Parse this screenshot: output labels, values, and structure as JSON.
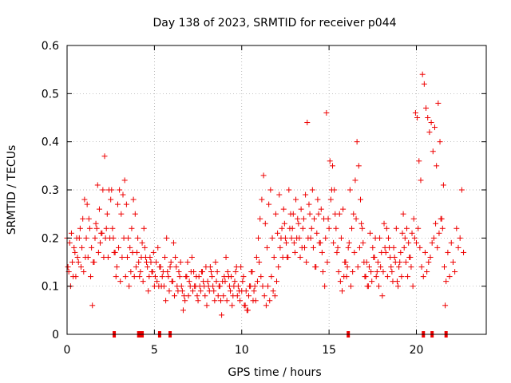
{
  "chart_data": {
    "type": "scatter",
    "title": "Day 138 of 2023, SRMTID for receiver p044",
    "xlabel": "GPS time / hours",
    "ylabel": "SRMTID / TECUs",
    "xlim": [
      0,
      24
    ],
    "ylim": [
      0,
      0.6
    ],
    "x_ticks": [
      0,
      5,
      10,
      15,
      20
    ],
    "x_tick_labels": [
      "0",
      "5",
      "10",
      "15",
      "20"
    ],
    "y_ticks": [
      0,
      0.1,
      0.2,
      0.3,
      0.4,
      0.5,
      0.6
    ],
    "y_tick_labels": [
      "0",
      "0.1",
      "0.2",
      "0.3",
      "0.4",
      "0.5",
      "0.6"
    ],
    "grid": true,
    "marker": "plus",
    "color": "#ee0000",
    "series_name": "p044",
    "points_x": [
      0,
      0.1,
      0.2,
      0.3,
      0.4,
      0.5,
      0.6,
      0.7,
      0.8,
      0.9,
      1,
      1.1,
      1.2,
      1.3,
      1.4,
      1.5,
      1.6,
      1.7,
      1.8,
      1.9,
      2,
      2.1,
      2.2,
      2.3,
      2.4,
      2.5,
      2.6,
      2.7,
      2.8,
      2.9,
      3,
      3.1,
      3.2,
      3.3,
      3.4,
      3.5,
      3.6,
      3.7,
      3.8,
      3.9,
      4,
      4.1,
      4.2,
      4.3,
      4.4,
      4.5,
      4.6,
      4.7,
      4.8,
      4.9,
      5,
      5.1,
      5.2,
      5.3,
      5.4,
      5.5,
      5.6,
      5.7,
      5.8,
      5.9,
      6,
      6.1,
      6.2,
      6.3,
      6.4,
      6.5,
      6.6,
      6.7,
      6.8,
      6.9,
      7,
      7.1,
      7.2,
      7.3,
      7.4,
      7.5,
      7.6,
      7.7,
      7.8,
      7.9,
      8,
      8.1,
      8.2,
      8.3,
      8.4,
      8.5,
      8.6,
      8.7,
      8.8,
      8.9,
      9,
      9.1,
      9.2,
      9.3,
      9.4,
      9.5,
      9.6,
      9.7,
      9.8,
      9.9,
      10,
      10.1,
      10.2,
      10.3,
      10.4,
      10.5,
      10.6,
      10.7,
      10.8,
      10.9,
      11,
      11.1,
      11.2,
      11.3,
      11.4,
      11.5,
      11.6,
      11.7,
      11.8,
      11.9,
      12,
      12.1,
      12.2,
      12.3,
      12.4,
      12.5,
      12.6,
      12.7,
      12.8,
      12.9,
      13,
      13.1,
      13.2,
      13.3,
      13.4,
      13.5,
      13.6,
      13.7,
      13.8,
      13.9,
      14,
      14.1,
      14.2,
      14.3,
      14.4,
      14.5,
      14.6,
      14.7,
      14.8,
      14.9,
      15,
      15.1,
      15.2,
      15.3,
      15.4,
      15.5,
      15.6,
      15.7,
      15.8,
      15.9,
      16,
      16.1,
      16.2,
      16.3,
      16.4,
      16.5,
      16.6,
      16.7,
      16.8,
      16.9,
      17,
      17.1,
      17.2,
      17.3,
      17.4,
      17.5,
      17.6,
      17.7,
      17.8,
      17.9,
      18,
      18.1,
      18.2,
      18.3,
      18.4,
      18.5,
      18.6,
      18.7,
      18.8,
      18.9,
      19,
      19.1,
      19.2,
      19.3,
      19.4,
      19.5,
      19.6,
      19.7,
      19.8,
      19.9,
      20,
      20.1,
      20.2,
      20.3,
      20.4,
      20.5,
      20.6,
      20.7,
      20.8,
      20.9,
      21,
      21.1,
      21.2,
      21.3,
      21.4,
      21.5,
      21.6,
      21.7,
      21.8,
      21.9,
      22,
      22.1,
      22.2,
      22.3,
      22.4,
      22.5,
      22.6,
      22.7,
      0.05,
      0.15,
      0.25,
      0.35,
      0.45,
      0.55,
      0.65,
      0.75,
      0.85,
      0.95,
      1.05,
      1.15,
      1.25,
      1.35,
      1.45,
      1.55,
      1.65,
      1.75,
      1.85,
      1.95,
      2.05,
      2.15,
      2.25,
      2.35,
      2.45,
      2.55,
      2.65,
      2.75,
      2.85,
      2.95,
      3.05,
      3.15,
      3.25,
      3.35,
      3.45,
      3.55,
      3.65,
      3.75,
      3.85,
      3.95,
      4.05,
      4.15,
      4.25,
      4.35,
      4.45,
      4.55,
      4.65,
      4.75,
      4.85,
      4.95,
      5.05,
      5.15,
      5.25,
      5.35,
      5.45,
      5.55,
      5.65,
      5.75,
      5.85,
      5.95,
      6.05,
      6.15,
      6.25,
      6.35,
      6.45,
      6.55,
      6.65,
      6.75,
      6.85,
      6.95,
      7.05,
      7.15,
      7.25,
      7.35,
      7.45,
      7.55,
      7.65,
      7.75,
      7.85,
      7.95,
      8.05,
      8.15,
      8.25,
      8.35,
      8.45,
      8.55,
      8.65,
      8.75,
      8.85,
      8.95,
      9.05,
      9.15,
      9.25,
      9.35,
      9.45,
      9.55,
      9.65,
      9.75,
      9.85,
      9.95,
      10.05,
      10.15,
      10.25,
      10.35,
      10.45,
      10.55,
      10.65,
      10.75,
      10.85,
      10.95,
      11.05,
      11.15,
      11.25,
      11.35,
      11.45,
      11.55,
      11.65,
      11.75,
      11.85,
      11.95,
      12.05,
      12.15,
      12.25,
      12.35,
      12.45,
      12.55,
      12.65,
      12.75,
      12.85,
      12.95,
      13.05,
      13.15,
      13.25,
      13.35,
      13.45,
      13.55,
      13.65,
      13.75,
      13.85,
      13.95,
      14.05,
      14.15,
      14.25,
      14.35,
      14.45,
      14.55,
      14.65,
      14.75,
      14.85,
      14.95,
      15.05,
      15.15,
      15.25,
      15.35,
      15.45,
      15.55,
      15.65,
      15.75,
      15.85,
      15.95,
      16.05,
      16.15,
      16.25,
      16.35,
      16.45,
      16.55,
      16.65,
      16.75,
      16.85,
      16.95,
      17.05,
      17.15,
      17.25,
      17.35,
      17.45,
      17.55,
      17.65,
      17.75,
      17.85,
      17.95,
      18.05,
      18.15,
      18.25,
      18.35,
      18.45,
      18.55,
      18.65,
      18.75,
      18.85,
      18.95,
      19.05,
      19.15,
      19.25,
      19.35,
      19.45,
      19.55,
      19.65,
      19.75,
      19.85,
      19.95,
      20.05,
      20.15,
      20.25,
      20.35,
      20.45,
      20.55,
      20.65,
      20.75,
      20.85,
      20.95,
      21.05,
      21.15,
      21.25,
      21.35,
      21.45,
      21.55,
      21.65,
      21.75,
      21.85,
      21.95,
      22.05,
      22.15,
      22.25,
      22.35,
      22.45,
      22.55,
      22.65,
      3.3,
      3.4,
      3.4,
      3.3,
      16.4,
      16.5,
      16.6,
      16.7,
      16.8,
      15.2,
      15.3,
      21.5,
      21.6,
      16.3,
      15.6,
      3.3,
      1.1,
      3.0
    ],
    "points_y": [
      0.2,
      0.13,
      0.1,
      0.15,
      0.18,
      0.12,
      0.16,
      0.2,
      0.14,
      0.24,
      0.28,
      0.2,
      0.16,
      0.22,
      0.18,
      0.15,
      0.2,
      0.22,
      0.17,
      0.19,
      0.21,
      0.16,
      0.2,
      0.25,
      0.3,
      0.28,
      0.22,
      0.17,
      0.12,
      0.27,
      0.3,
      0.25,
      0.29,
      0.32,
      0.27,
      0.2,
      0.18,
      0.22,
      0.28,
      0.25,
      0.17,
      0.15,
      0.13,
      0.19,
      0.22,
      0.16,
      0.14,
      0.12,
      0.15,
      0.13,
      0.1,
      0.15,
      0.18,
      0.14,
      0.1,
      0.13,
      0.16,
      0.2,
      0.12,
      0.14,
      0.11,
      0.19,
      0.16,
      0.1,
      0.13,
      0.15,
      0.09,
      0.08,
      0.12,
      0.15,
      0.11,
      0.13,
      0.09,
      0.1,
      0.12,
      0.07,
      0.1,
      0.13,
      0.11,
      0.08,
      0.06,
      0.1,
      0.14,
      0.12,
      0.09,
      0.15,
      0.13,
      0.1,
      0.07,
      0.11,
      0.12,
      0.16,
      0.13,
      0.1,
      0.12,
      0.08,
      0.11,
      0.14,
      0.1,
      0.07,
      0.09,
      0.12,
      0.06,
      0.05,
      0.08,
      0.1,
      0.13,
      0.09,
      0.07,
      0.11,
      0.15,
      0.12,
      0.1,
      0.08,
      0.06,
      0.1,
      0.07,
      0.12,
      0.09,
      0.08,
      0.11,
      0.14,
      0.18,
      0.22,
      0.26,
      0.2,
      0.16,
      0.3,
      0.25,
      0.22,
      0.19,
      0.28,
      0.24,
      0.2,
      0.26,
      0.22,
      0.18,
      0.15,
      0.2,
      0.25,
      0.22,
      0.18,
      0.14,
      0.21,
      0.25,
      0.19,
      0.17,
      0.24,
      0.2,
      0.15,
      0.22,
      0.28,
      0.35,
      0.3,
      0.22,
      0.18,
      0.25,
      0.2,
      0.26,
      0.15,
      0.12,
      0.18,
      0.3,
      0.22,
      0.25,
      0.32,
      0.4,
      0.35,
      0.28,
      0.22,
      0.15,
      0.12,
      0.1,
      0.14,
      0.13,
      0.18,
      0.16,
      0.12,
      0.15,
      0.2,
      0.17,
      0.13,
      0.18,
      0.22,
      0.2,
      0.16,
      0.13,
      0.18,
      0.15,
      0.11,
      0.14,
      0.17,
      0.21,
      0.18,
      0.15,
      0.12,
      0.16,
      0.14,
      0.1,
      0.2,
      0.19,
      0.22,
      0.18,
      0.14,
      0.12,
      0.17,
      0.13,
      0.15,
      0.16,
      0.19,
      0.2,
      0.23,
      0.18,
      0.21,
      0.24,
      0.22,
      0.14,
      0.11,
      0.17,
      0.12,
      0.19,
      0.15,
      0.13,
      0.22,
      0.18,
      0.2,
      0.3,
      0.17,
      0.14,
      0.19,
      0.21,
      0.12,
      0.17,
      0.2,
      0.15,
      0.22,
      0.18,
      0.13,
      0.16,
      0.27,
      0.24,
      0.12,
      0.06,
      0.15,
      0.23,
      0.31,
      0.26,
      0.21,
      0.3,
      0.37,
      0.22,
      0.16,
      0.2,
      0.3,
      0.2,
      0.17,
      0.14,
      0.18,
      0.11,
      0.16,
      0.2,
      0.12,
      0.16,
      0.1,
      0.13,
      0.17,
      0.12,
      0.14,
      0.2,
      0.12,
      0.16,
      0.11,
      0.18,
      0.15,
      0.09,
      0.16,
      0.13,
      0.17,
      0.12,
      0.11,
      0.1,
      0.14,
      0.12,
      0.1,
      0.07,
      0.13,
      0.09,
      0.15,
      0.11,
      0.08,
      0.14,
      0.09,
      0.12,
      0.1,
      0.05,
      0.07,
      0.12,
      0.08,
      0.1,
      0.16,
      0.13,
      0.1,
      0.08,
      0.12,
      0.09,
      0.13,
      0.1,
      0.14,
      0.11,
      0.09,
      0.13,
      0.1,
      0.07,
      0.11,
      0.08,
      0.1,
      0.04,
      0.08,
      0.11,
      0.07,
      0.12,
      0.09,
      0.06,
      0.1,
      0.13,
      0.08,
      0.09,
      0.14,
      0.11,
      0.06,
      0.09,
      0.05,
      0.1,
      0.13,
      0.07,
      0.1,
      0.16,
      0.2,
      0.24,
      0.28,
      0.33,
      0.23,
      0.18,
      0.27,
      0.3,
      0.2,
      0.16,
      0.25,
      0.21,
      0.29,
      0.2,
      0.16,
      0.23,
      0.19,
      0.16,
      0.22,
      0.2,
      0.25,
      0.17,
      0.2,
      0.23,
      0.16,
      0.18,
      0.24,
      0.29,
      0.44,
      0.27,
      0.2,
      0.3,
      0.24,
      0.14,
      0.28,
      0.19,
      0.26,
      0.13,
      0.1,
      0.46,
      0.24,
      0.36,
      0.3,
      0.19,
      0.25,
      0.17,
      0.13,
      0.11,
      0.09,
      0.12,
      0.15,
      0.14,
      0.19,
      0.1,
      0.13,
      0.17,
      0.24,
      0.14,
      0.18,
      0.23,
      0.19,
      0.12,
      0.15,
      0.1,
      0.21,
      0.11,
      0.16,
      0.2,
      0.13,
      0.1,
      0.14,
      0.08,
      0.23,
      0.17,
      0.12,
      0.18,
      0.14,
      0.11,
      0.16,
      0.22,
      0.1,
      0.15,
      0.12,
      0.25,
      0.2,
      0.22,
      0.19,
      0.16,
      0.21,
      0.24,
      0.46,
      0.45,
      0.36,
      0.32,
      0.54,
      0.52,
      0.47,
      0.45,
      0.42,
      0.44,
      0.38,
      0.43,
      0.35,
      0.48,
      0.4,
      0.24,
      0.31,
      0.06
    ],
    "bottom_flags_x": [
      2.7,
      4.1,
      4.2,
      4.3,
      5.3,
      5.9,
      16.1,
      20.4,
      20.9,
      21.7
    ]
  }
}
